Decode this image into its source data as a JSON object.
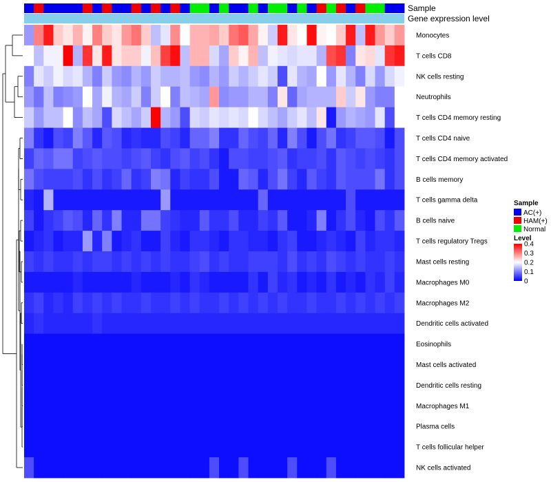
{
  "chart_data": {
    "type": "heatmap",
    "annotation_tracks": [
      {
        "name": "Sample"
      },
      {
        "name": "Gene expression level"
      }
    ],
    "sample_groups": [
      "AC",
      "HAM",
      "AC",
      "AC",
      "AC",
      "AC",
      "HAM",
      "AC",
      "HAM",
      "AC",
      "AC",
      "HAM",
      "AC",
      "HAM",
      "AC",
      "HAM",
      "AC",
      "Normal",
      "Normal",
      "AC",
      "Normal",
      "AC",
      "AC",
      "Normal",
      "AC",
      "Normal",
      "Normal",
      "AC",
      "Normal",
      "AC",
      "HAM",
      "Normal",
      "HAM",
      "AC",
      "HAM",
      "Normal",
      "Normal",
      "AC",
      "AC"
    ],
    "rows": [
      "Monocytes",
      "T cells CD8",
      "NK cells resting",
      "Neutrophils",
      "T cells CD4 memory resting",
      "T cells CD4 naive",
      "T cells CD4 memory activated",
      "B cells memory",
      "T cells gamma delta",
      "B cells naive",
      "T cells regulatory  Tregs",
      "Mast cells resting",
      "Macrophages M0",
      "Macrophages M2",
      "Dendritic cells activated",
      "Eosinophils",
      "Mast cells activated",
      "Dendritic cells resting",
      "Macrophages M1",
      "Plasma cells",
      "T cells follicular helper",
      "NK cells activated"
    ],
    "values": [
      [
        0.12,
        0.3,
        0.38,
        0.24,
        0.22,
        0.26,
        0.21,
        0.3,
        0.24,
        0.22,
        0.28,
        0.31,
        0.24,
        0.15,
        0.18,
        0.29,
        0.2,
        0.26,
        0.26,
        0.27,
        0.24,
        0.31,
        0.33,
        0.27,
        0.21,
        0.16,
        0.38,
        0.22,
        0.2,
        0.39,
        0.21,
        0.2,
        0.24,
        0.38,
        0.15,
        0.38,
        0.28,
        0.24,
        0.28
      ],
      [
        0.2,
        0.15,
        0.19,
        0.19,
        0.4,
        0.14,
        0.36,
        0.22,
        0.38,
        0.22,
        0.24,
        0.24,
        0.19,
        0.25,
        0.35,
        0.39,
        0.15,
        0.26,
        0.26,
        0.17,
        0.13,
        0.24,
        0.21,
        0.26,
        0.15,
        0.19,
        0.18,
        0.17,
        0.18,
        0.18,
        0.14,
        0.34,
        0.36,
        0.1,
        0.22,
        0.23,
        0.18,
        0.36,
        0.38
      ],
      [
        0.1,
        0.18,
        0.16,
        0.19,
        0.17,
        0.18,
        0.14,
        0.1,
        0.16,
        0.12,
        0.11,
        0.14,
        0.12,
        0.16,
        0.14,
        0.14,
        0.15,
        0.12,
        0.11,
        0.14,
        0.12,
        0.16,
        0.14,
        0.16,
        0.18,
        0.16,
        0.06,
        0.18,
        0.14,
        0.13,
        0.2,
        0.12,
        0.18,
        0.14,
        0.1,
        0.17,
        0.12,
        0.17,
        0.19
      ],
      [
        0.12,
        0.09,
        0.15,
        0.1,
        0.11,
        0.12,
        0.2,
        0.13,
        0.19,
        0.14,
        0.13,
        0.16,
        0.1,
        0.16,
        0.2,
        0.1,
        0.15,
        0.14,
        0.13,
        0.28,
        0.11,
        0.12,
        0.12,
        0.14,
        0.14,
        0.1,
        0.22,
        0.08,
        0.13,
        0.14,
        0.14,
        0.14,
        0.24,
        0.16,
        0.22,
        0.12,
        0.1,
        0.1,
        0.2
      ],
      [
        0.16,
        0.12,
        0.15,
        0.15,
        0.2,
        0.11,
        0.15,
        0.13,
        0.06,
        0.17,
        0.15,
        0.13,
        0.16,
        0.4,
        0.14,
        0.12,
        0.06,
        0.17,
        0.16,
        0.18,
        0.17,
        0.18,
        0.17,
        0.2,
        0.17,
        0.15,
        0.13,
        0.16,
        0.18,
        0.15,
        0.22,
        0.02,
        0.12,
        0.14,
        0.13,
        0.12,
        0.18,
        0.06,
        0.2
      ],
      [
        0.1,
        0.04,
        0.02,
        0.06,
        0.05,
        0.1,
        0.07,
        0.03,
        0.07,
        0.06,
        0.03,
        0.04,
        0.03,
        0.03,
        0.06,
        0.05,
        0.03,
        0.08,
        0.08,
        0.1,
        0.04,
        0.04,
        0.08,
        0.06,
        0.05,
        0.08,
        0.03,
        0.1,
        0.06,
        0.02,
        0.06,
        0.09,
        0.04,
        0.05,
        0.07,
        0.07,
        0.06,
        0.02,
        0.06
      ],
      [
        0.05,
        0.08,
        0.07,
        0.09,
        0.09,
        0.05,
        0.06,
        0.07,
        0.06,
        0.06,
        0.05,
        0.06,
        0.07,
        0.05,
        0.04,
        0.06,
        0.07,
        0.05,
        0.06,
        0.04,
        0.02,
        0.06,
        0.06,
        0.05,
        0.05,
        0.06,
        0.07,
        0.04,
        0.05,
        0.05,
        0.06,
        0.04,
        0.07,
        0.06,
        0.05,
        0.06,
        0.05,
        0.04,
        0.06
      ],
      [
        0.09,
        0.06,
        0.05,
        0.05,
        0.05,
        0.06,
        0.04,
        0.06,
        0.04,
        0.05,
        0.08,
        0.04,
        0.05,
        0.1,
        0.09,
        0.03,
        0.05,
        0.04,
        0.04,
        0.06,
        0.02,
        0.02,
        0.08,
        0.07,
        0.03,
        0.06,
        0.09,
        0.05,
        0.03,
        0.07,
        0.05,
        0.04,
        0.07,
        0.06,
        0.06,
        0.06,
        0.09,
        0.04,
        0.06
      ],
      [
        0.03,
        0.02,
        0.14,
        0.02,
        0.02,
        0.02,
        0.02,
        0.02,
        0.02,
        0.02,
        0.02,
        0.02,
        0.02,
        0.02,
        0.12,
        0.02,
        0.02,
        0.02,
        0.02,
        0.02,
        0.02,
        0.02,
        0.02,
        0.02,
        0.08,
        0.02,
        0.02,
        0.02,
        0.02,
        0.02,
        0.02,
        0.02,
        0.02,
        0.06,
        0.02,
        0.02,
        0.02,
        0.02,
        0.02
      ],
      [
        0.05,
        0.02,
        0.04,
        0.05,
        0.07,
        0.06,
        0.03,
        0.08,
        0.04,
        0.1,
        0.03,
        0.03,
        0.09,
        0.09,
        0.05,
        0.04,
        0.03,
        0.03,
        0.07,
        0.04,
        0.04,
        0.06,
        0.03,
        0.03,
        0.05,
        0.04,
        0.07,
        0.02,
        0.02,
        0.03,
        0.1,
        0.02,
        0.04,
        0.06,
        0.03,
        0.02,
        0.06,
        0.04,
        0.07
      ],
      [
        0.02,
        0.03,
        0.04,
        0.02,
        0.03,
        0.03,
        0.12,
        0.03,
        0.1,
        0.02,
        0.03,
        0.04,
        0.02,
        0.02,
        0.05,
        0.03,
        0.02,
        0.04,
        0.04,
        0.03,
        0.02,
        0.04,
        0.04,
        0.03,
        0.03,
        0.02,
        0.04,
        0.05,
        0.02,
        0.02,
        0.03,
        0.04,
        0.03,
        0.02,
        0.05,
        0.03,
        0.04,
        0.04,
        0.03
      ],
      [
        0.05,
        0.04,
        0.05,
        0.04,
        0.04,
        0.05,
        0.04,
        0.05,
        0.05,
        0.04,
        0.05,
        0.04,
        0.05,
        0.04,
        0.05,
        0.04,
        0.04,
        0.05,
        0.06,
        0.04,
        0.05,
        0.04,
        0.04,
        0.05,
        0.05,
        0.05,
        0.04,
        0.06,
        0.04,
        0.05,
        0.04,
        0.06,
        0.05,
        0.04,
        0.05,
        0.04,
        0.04,
        0.05,
        0.04
      ],
      [
        0.02,
        0.02,
        0.02,
        0.02,
        0.02,
        0.03,
        0.02,
        0.02,
        0.02,
        0.02,
        0.02,
        0.03,
        0.02,
        0.02,
        0.02,
        0.03,
        0.02,
        0.04,
        0.03,
        0.02,
        0.02,
        0.02,
        0.02,
        0.04,
        0.02,
        0.05,
        0.03,
        0.04,
        0.02,
        0.03,
        0.02,
        0.04,
        0.02,
        0.03,
        0.02,
        0.04,
        0.03,
        0.05,
        0.03
      ],
      [
        0.04,
        0.05,
        0.03,
        0.04,
        0.03,
        0.05,
        0.04,
        0.05,
        0.04,
        0.05,
        0.04,
        0.04,
        0.05,
        0.04,
        0.04,
        0.05,
        0.04,
        0.05,
        0.04,
        0.04,
        0.05,
        0.04,
        0.05,
        0.04,
        0.05,
        0.04,
        0.05,
        0.04,
        0.04,
        0.05,
        0.04,
        0.04,
        0.05,
        0.04,
        0.05,
        0.04,
        0.05,
        0.04,
        0.05
      ],
      [
        0.03,
        0.04,
        0.03,
        0.03,
        0.03,
        0.03,
        0.03,
        0.04,
        0.03,
        0.03,
        0.03,
        0.03,
        0.03,
        0.03,
        0.03,
        0.03,
        0.03,
        0.03,
        0.03,
        0.03,
        0.03,
        0.03,
        0.03,
        0.03,
        0.03,
        0.03,
        0.03,
        0.03,
        0.03,
        0.03,
        0.03,
        0.03,
        0.03,
        0.03,
        0.03,
        0.03,
        0.03,
        0.03,
        0.03
      ],
      [
        0.01,
        0.01,
        0.01,
        0.01,
        0.01,
        0.01,
        0.01,
        0.01,
        0.01,
        0.01,
        0.01,
        0.01,
        0.01,
        0.01,
        0.01,
        0.01,
        0.01,
        0.01,
        0.01,
        0.01,
        0.01,
        0.01,
        0.01,
        0.01,
        0.01,
        0.01,
        0.01,
        0.01,
        0.01,
        0.01,
        0.01,
        0.01,
        0.01,
        0.01,
        0.01,
        0.01,
        0.01,
        0.01,
        0.01
      ],
      [
        0.01,
        0.01,
        0.01,
        0.01,
        0.01,
        0.01,
        0.01,
        0.01,
        0.01,
        0.01,
        0.01,
        0.01,
        0.01,
        0.01,
        0.01,
        0.01,
        0.01,
        0.01,
        0.01,
        0.01,
        0.01,
        0.01,
        0.01,
        0.01,
        0.01,
        0.01,
        0.01,
        0.01,
        0.01,
        0.01,
        0.01,
        0.01,
        0.01,
        0.01,
        0.01,
        0.01,
        0.01,
        0.01,
        0.01
      ],
      [
        0.01,
        0.01,
        0.01,
        0.01,
        0.01,
        0.01,
        0.01,
        0.01,
        0.01,
        0.01,
        0.01,
        0.01,
        0.01,
        0.01,
        0.01,
        0.01,
        0.01,
        0.01,
        0.01,
        0.01,
        0.01,
        0.01,
        0.01,
        0.01,
        0.01,
        0.01,
        0.01,
        0.01,
        0.01,
        0.01,
        0.01,
        0.01,
        0.01,
        0.01,
        0.01,
        0.01,
        0.01,
        0.01,
        0.01
      ],
      [
        0.01,
        0.01,
        0.01,
        0.01,
        0.01,
        0.01,
        0.01,
        0.01,
        0.01,
        0.01,
        0.01,
        0.01,
        0.01,
        0.01,
        0.01,
        0.01,
        0.01,
        0.01,
        0.01,
        0.01,
        0.01,
        0.01,
        0.01,
        0.01,
        0.01,
        0.01,
        0.01,
        0.01,
        0.01,
        0.01,
        0.01,
        0.01,
        0.01,
        0.01,
        0.01,
        0.01,
        0.01,
        0.01,
        0.01
      ],
      [
        0.01,
        0.01,
        0.01,
        0.01,
        0.01,
        0.01,
        0.01,
        0.01,
        0.01,
        0.01,
        0.01,
        0.01,
        0.01,
        0.01,
        0.01,
        0.01,
        0.01,
        0.01,
        0.01,
        0.01,
        0.01,
        0.01,
        0.01,
        0.01,
        0.01,
        0.01,
        0.01,
        0.01,
        0.01,
        0.01,
        0.01,
        0.01,
        0.01,
        0.01,
        0.01,
        0.01,
        0.01,
        0.01,
        0.01
      ],
      [
        0.01,
        0.01,
        0.01,
        0.01,
        0.01,
        0.01,
        0.01,
        0.01,
        0.01,
        0.01,
        0.01,
        0.01,
        0.01,
        0.01,
        0.01,
        0.01,
        0.01,
        0.01,
        0.01,
        0.01,
        0.01,
        0.01,
        0.01,
        0.01,
        0.01,
        0.01,
        0.01,
        0.01,
        0.01,
        0.01,
        0.01,
        0.01,
        0.01,
        0.01,
        0.01,
        0.01,
        0.01,
        0.01,
        0.01
      ],
      [
        0.06,
        0.01,
        0.01,
        0.01,
        0.01,
        0.01,
        0.01,
        0.01,
        0.01,
        0.01,
        0.01,
        0.01,
        0.01,
        0.01,
        0.01,
        0.01,
        0.01,
        0.01,
        0.01,
        0.06,
        0.01,
        0.01,
        0.06,
        0.01,
        0.01,
        0.01,
        0.01,
        0.06,
        0.01,
        0.01,
        0.01,
        0.06,
        0.01,
        0.01,
        0.01,
        0.01,
        0.01,
        0.01,
        0.01
      ]
    ],
    "legend": {
      "sample_title": "Sample",
      "sample_entries": [
        {
          "key": "AC",
          "label": "AC(+)",
          "color": "#0000ee"
        },
        {
          "key": "HAM",
          "label": "HAM(+)",
          "color": "#ee0000"
        },
        {
          "key": "Normal",
          "label": "Normal",
          "color": "#00ee00"
        }
      ],
      "level_title": "Level",
      "level_ticks": [
        0.4,
        0.3,
        0.2,
        0.1,
        0
      ],
      "level_tick_labels": [
        "0.4",
        "0.3",
        "0.2",
        "0.1",
        "0"
      ],
      "placement": "right"
    },
    "color_scale": {
      "min": 0,
      "mid": 0.2,
      "max": 0.4,
      "low": "#0000ff",
      "midc": "#ffffff",
      "high": "#ff0000"
    },
    "expression_track_color": "#87ceeb",
    "dendrogram": "rows-left"
  }
}
